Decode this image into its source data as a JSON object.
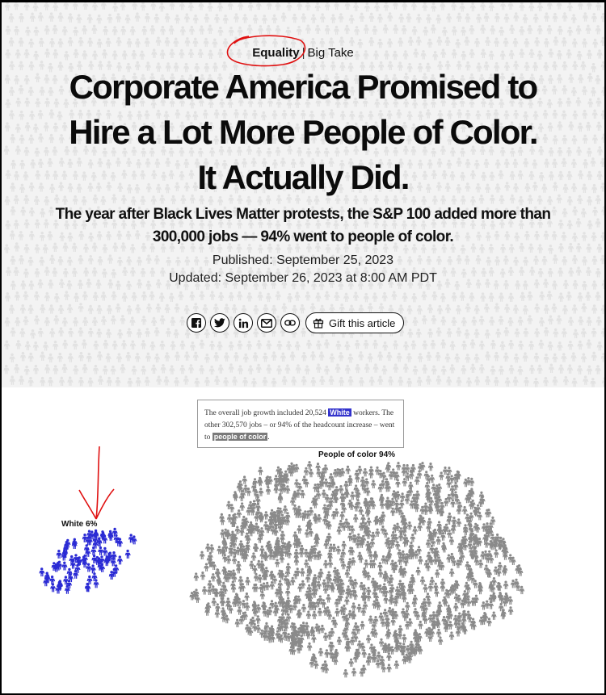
{
  "kicker": {
    "topic": "Equality",
    "separator": "|",
    "series": "Big Take"
  },
  "headline": {
    "line1": "Corporate America Promised to",
    "line2": "Hire a Lot More People of Color.",
    "line3": "It Actually Did."
  },
  "dek": "The year after Black Lives Matter protests, the S&P 100 added more than 300,000 jobs — 94% went to people of color.",
  "published": "Published: September 25, 2023",
  "updated": "Updated: September 26, 2023 at 8:00 AM PDT",
  "share": {
    "icons": [
      "facebook-icon",
      "twitter-icon",
      "linkedin-icon",
      "email-icon",
      "link-icon"
    ],
    "gift_label": "Gift this article"
  },
  "tooltip": {
    "part1": "The overall job growth included 20,524 ",
    "white_label": "White",
    "part2": " workers. The other 302,570 jobs – or 94% of the headcount increase – went to ",
    "poc_label": "people of color",
    "part3": "."
  },
  "colors": {
    "white_group": "#2b2bd4",
    "poc_group": "#8a8a8a",
    "hero_bg": "#f3f3f3",
    "annotation": "#e01010"
  },
  "chart_data": {
    "type": "scatter",
    "groups": [
      {
        "label": "White 6%",
        "share": 6,
        "jobs": 20524,
        "color": "#2b2bd4"
      },
      {
        "label": "People of color 94%",
        "share": 94,
        "jobs": 302570,
        "color": "#8a8a8a"
      }
    ]
  }
}
